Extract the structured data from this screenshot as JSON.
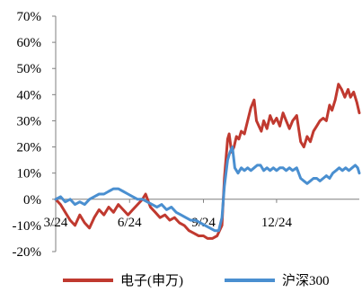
{
  "chart_data": {
    "type": "line",
    "title": "",
    "xlabel": "",
    "ylabel": "",
    "y_axis": {
      "min": -0.2,
      "max": 0.7,
      "ticks": [
        -0.2,
        -0.1,
        0.0,
        0.1,
        0.2,
        0.3,
        0.4,
        0.5,
        0.6,
        0.7
      ],
      "tick_labels": [
        "-20%",
        "-10%",
        "0%",
        "10%",
        "20%",
        "30%",
        "40%",
        "50%",
        "60%",
        "70%"
      ]
    },
    "x_axis": {
      "range": [
        "2024-03-01",
        "2025-03-14"
      ],
      "ticks": [
        {
          "date": "2024-03-01",
          "label": "3/24"
        },
        {
          "date": "2024-06-01",
          "label": "6/24"
        },
        {
          "date": "2024-09-01",
          "label": "9/24"
        },
        {
          "date": "2024-12-01",
          "label": "12/24"
        }
      ]
    },
    "grid": false,
    "legend_position": "bottom",
    "series": [
      {
        "name": "电子(申万)",
        "color": "#C0392F",
        "points": [
          [
            "2024-03-01",
            0.0
          ],
          [
            "2024-03-07",
            -0.02
          ],
          [
            "2024-03-13",
            -0.05
          ],
          [
            "2024-03-19",
            -0.08
          ],
          [
            "2024-03-25",
            -0.1
          ],
          [
            "2024-03-31",
            -0.06
          ],
          [
            "2024-04-06",
            -0.09
          ],
          [
            "2024-04-12",
            -0.11
          ],
          [
            "2024-04-18",
            -0.07
          ],
          [
            "2024-04-24",
            -0.04
          ],
          [
            "2024-04-30",
            -0.06
          ],
          [
            "2024-05-06",
            -0.03
          ],
          [
            "2024-05-12",
            -0.05
          ],
          [
            "2024-05-18",
            -0.02
          ],
          [
            "2024-05-24",
            -0.04
          ],
          [
            "2024-05-30",
            -0.06
          ],
          [
            "2024-06-05",
            -0.04
          ],
          [
            "2024-06-11",
            -0.02
          ],
          [
            "2024-06-17",
            0.0
          ],
          [
            "2024-06-21",
            0.02
          ],
          [
            "2024-06-27",
            -0.03
          ],
          [
            "2024-07-03",
            -0.05
          ],
          [
            "2024-07-09",
            -0.07
          ],
          [
            "2024-07-15",
            -0.06
          ],
          [
            "2024-07-21",
            -0.08
          ],
          [
            "2024-07-27",
            -0.07
          ],
          [
            "2024-08-02",
            -0.09
          ],
          [
            "2024-08-08",
            -0.1
          ],
          [
            "2024-08-14",
            -0.12
          ],
          [
            "2024-08-20",
            -0.13
          ],
          [
            "2024-08-26",
            -0.14
          ],
          [
            "2024-09-01",
            -0.14
          ],
          [
            "2024-09-06",
            -0.15
          ],
          [
            "2024-09-12",
            -0.15
          ],
          [
            "2024-09-18",
            -0.14
          ],
          [
            "2024-09-24",
            -0.1
          ],
          [
            "2024-09-27",
            0.08
          ],
          [
            "2024-10-01",
            0.23
          ],
          [
            "2024-10-03",
            0.25
          ],
          [
            "2024-10-06",
            0.18
          ],
          [
            "2024-10-09",
            0.2
          ],
          [
            "2024-10-12",
            0.24
          ],
          [
            "2024-10-15",
            0.23
          ],
          [
            "2024-10-18",
            0.26
          ],
          [
            "2024-10-22",
            0.25
          ],
          [
            "2024-10-26",
            0.3
          ],
          [
            "2024-10-30",
            0.35
          ],
          [
            "2024-11-03",
            0.38
          ],
          [
            "2024-11-06",
            0.3
          ],
          [
            "2024-11-09",
            0.28
          ],
          [
            "2024-11-12",
            0.26
          ],
          [
            "2024-11-15",
            0.3
          ],
          [
            "2024-11-19",
            0.27
          ],
          [
            "2024-11-23",
            0.32
          ],
          [
            "2024-11-27",
            0.29
          ],
          [
            "2024-12-01",
            0.31
          ],
          [
            "2024-12-05",
            0.28
          ],
          [
            "2024-12-09",
            0.33
          ],
          [
            "2024-12-13",
            0.3
          ],
          [
            "2024-12-17",
            0.27
          ],
          [
            "2024-12-21",
            0.3
          ],
          [
            "2024-12-26",
            0.32
          ],
          [
            "2024-12-31",
            0.22
          ],
          [
            "2025-01-04",
            0.2
          ],
          [
            "2025-01-08",
            0.24
          ],
          [
            "2025-01-12",
            0.22
          ],
          [
            "2025-01-16",
            0.26
          ],
          [
            "2025-01-20",
            0.28
          ],
          [
            "2025-01-24",
            0.3
          ],
          [
            "2025-01-28",
            0.31
          ],
          [
            "2025-02-01",
            0.3
          ],
          [
            "2025-02-05",
            0.36
          ],
          [
            "2025-02-08",
            0.34
          ],
          [
            "2025-02-12",
            0.38
          ],
          [
            "2025-02-16",
            0.44
          ],
          [
            "2025-02-20",
            0.42
          ],
          [
            "2025-02-24",
            0.39
          ],
          [
            "2025-02-28",
            0.42
          ],
          [
            "2025-03-03",
            0.39
          ],
          [
            "2025-03-07",
            0.41
          ],
          [
            "2025-03-11",
            0.37
          ],
          [
            "2025-03-14",
            0.33
          ]
        ]
      },
      {
        "name": "沪深300",
        "color": "#4A8FD0",
        "points": [
          [
            "2024-03-01",
            0.0
          ],
          [
            "2024-03-07",
            0.01
          ],
          [
            "2024-03-13",
            -0.01
          ],
          [
            "2024-03-19",
            0.0
          ],
          [
            "2024-03-25",
            -0.02
          ],
          [
            "2024-03-31",
            -0.01
          ],
          [
            "2024-04-06",
            -0.02
          ],
          [
            "2024-04-12",
            0.0
          ],
          [
            "2024-04-18",
            0.01
          ],
          [
            "2024-04-24",
            0.02
          ],
          [
            "2024-04-30",
            0.02
          ],
          [
            "2024-05-06",
            0.03
          ],
          [
            "2024-05-12",
            0.04
          ],
          [
            "2024-05-18",
            0.04
          ],
          [
            "2024-05-24",
            0.03
          ],
          [
            "2024-05-30",
            0.02
          ],
          [
            "2024-06-05",
            0.01
          ],
          [
            "2024-06-11",
            0.0
          ],
          [
            "2024-06-17",
            0.0
          ],
          [
            "2024-06-23",
            -0.01
          ],
          [
            "2024-06-29",
            -0.02
          ],
          [
            "2024-07-05",
            -0.03
          ],
          [
            "2024-07-11",
            -0.02
          ],
          [
            "2024-07-17",
            -0.04
          ],
          [
            "2024-07-23",
            -0.03
          ],
          [
            "2024-07-29",
            -0.05
          ],
          [
            "2024-08-04",
            -0.06
          ],
          [
            "2024-08-10",
            -0.07
          ],
          [
            "2024-08-16",
            -0.08
          ],
          [
            "2024-08-22",
            -0.08
          ],
          [
            "2024-08-28",
            -0.09
          ],
          [
            "2024-09-03",
            -0.1
          ],
          [
            "2024-09-09",
            -0.11
          ],
          [
            "2024-09-15",
            -0.12
          ],
          [
            "2024-09-20",
            -0.12
          ],
          [
            "2024-09-24",
            -0.07
          ],
          [
            "2024-09-27",
            0.05
          ],
          [
            "2024-10-01",
            0.15
          ],
          [
            "2024-10-04",
            0.18
          ],
          [
            "2024-10-07",
            0.2
          ],
          [
            "2024-10-10",
            0.12
          ],
          [
            "2024-10-14",
            0.1
          ],
          [
            "2024-10-18",
            0.12
          ],
          [
            "2024-10-22",
            0.11
          ],
          [
            "2024-10-26",
            0.12
          ],
          [
            "2024-10-30",
            0.11
          ],
          [
            "2024-11-03",
            0.12
          ],
          [
            "2024-11-07",
            0.13
          ],
          [
            "2024-11-11",
            0.13
          ],
          [
            "2024-11-15",
            0.11
          ],
          [
            "2024-11-19",
            0.12
          ],
          [
            "2024-11-23",
            0.11
          ],
          [
            "2024-11-27",
            0.12
          ],
          [
            "2024-12-01",
            0.11
          ],
          [
            "2024-12-05",
            0.12
          ],
          [
            "2024-12-09",
            0.12
          ],
          [
            "2024-12-13",
            0.11
          ],
          [
            "2024-12-17",
            0.12
          ],
          [
            "2024-12-21",
            0.11
          ],
          [
            "2024-12-26",
            0.12
          ],
          [
            "2024-12-31",
            0.08
          ],
          [
            "2025-01-04",
            0.07
          ],
          [
            "2025-01-08",
            0.06
          ],
          [
            "2025-01-12",
            0.07
          ],
          [
            "2025-01-16",
            0.08
          ],
          [
            "2025-01-20",
            0.08
          ],
          [
            "2025-01-24",
            0.07
          ],
          [
            "2025-01-28",
            0.08
          ],
          [
            "2025-02-01",
            0.09
          ],
          [
            "2025-02-05",
            0.08
          ],
          [
            "2025-02-09",
            0.1
          ],
          [
            "2025-02-13",
            0.11
          ],
          [
            "2025-02-17",
            0.12
          ],
          [
            "2025-02-21",
            0.11
          ],
          [
            "2025-02-25",
            0.12
          ],
          [
            "2025-03-01",
            0.11
          ],
          [
            "2025-03-05",
            0.12
          ],
          [
            "2025-03-09",
            0.13
          ],
          [
            "2025-03-12",
            0.12
          ],
          [
            "2025-03-14",
            0.1
          ]
        ]
      }
    ]
  }
}
